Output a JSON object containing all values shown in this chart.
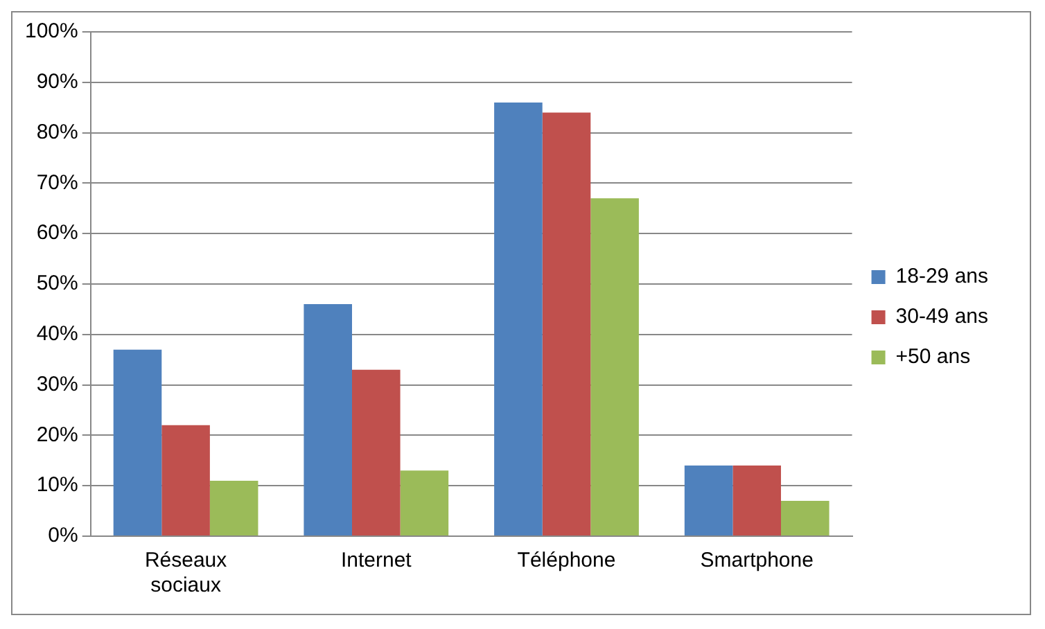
{
  "chart_data": {
    "type": "bar",
    "categories": [
      "Réseaux sociaux",
      "Internet",
      "Téléphone",
      "Smartphone"
    ],
    "series": [
      {
        "name": "18-29 ans",
        "color": "#4f81bd",
        "values": [
          37,
          46,
          86,
          14
        ]
      },
      {
        "name": "30-49 ans",
        "color": "#c0504d",
        "values": [
          22,
          33,
          84,
          14
        ]
      },
      {
        "name": "+50 ans",
        "color": "#9bbb59",
        "values": [
          11,
          13,
          67,
          7
        ]
      }
    ],
    "ylim": [
      0,
      100
    ],
    "yticks": [
      {
        "value": 0,
        "label": "0%"
      },
      {
        "value": 10,
        "label": "10%"
      },
      {
        "value": 20,
        "label": "20%"
      },
      {
        "value": 30,
        "label": "30%"
      },
      {
        "value": 40,
        "label": "40%"
      },
      {
        "value": 50,
        "label": "50%"
      },
      {
        "value": 60,
        "label": "60%"
      },
      {
        "value": 70,
        "label": "70%"
      },
      {
        "value": 80,
        "label": "80%"
      },
      {
        "value": 90,
        "label": "90%"
      },
      {
        "value": 100,
        "label": "100%"
      }
    ],
    "grid": "y",
    "legend": "right"
  }
}
